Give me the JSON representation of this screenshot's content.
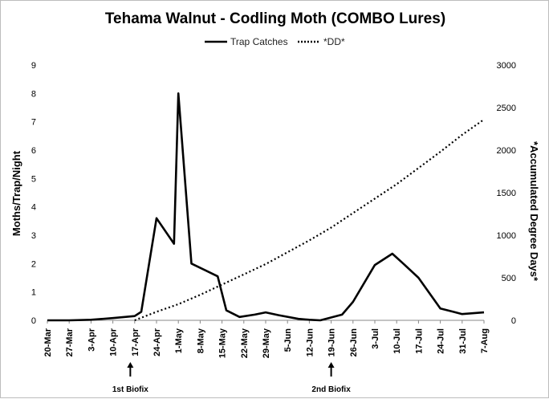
{
  "chart_data": {
    "type": "line",
    "title": "Tehama Walnut - Codling Moth (COMBO Lures)",
    "categories": [
      "20-Mar",
      "27-Mar",
      "3-Apr",
      "10-Apr",
      "17-Apr",
      "24-Apr",
      "1-May",
      "8-May",
      "15-May",
      "22-May",
      "29-May",
      "5-Jun",
      "12-Jun",
      "19-Jun",
      "26-Jun",
      "3-Jul",
      "10-Jul",
      "17-Jul",
      "24-Jul",
      "31-Jul",
      "7-Aug"
    ],
    "ylabel_left": "Moths/Trap/Night",
    "ylabel_right": "*Accumulated Degree Days*",
    "ylim_left": [
      0,
      9
    ],
    "ylim_right": [
      0,
      3000
    ],
    "yticks_left": [
      "0",
      "1",
      "2",
      "3",
      "4",
      "5",
      "6",
      "7",
      "8",
      "9"
    ],
    "yticks_right": [
      "0",
      "500",
      "1000",
      "1500",
      "2000",
      "2500",
      "3000"
    ],
    "legend_position": "top",
    "grid": false,
    "series": [
      {
        "name": "Trap Catches",
        "axis": "left",
        "style": "solid",
        "color": "#000000",
        "x": [
          0,
          1,
          2,
          3,
          4,
          4.3,
          5,
          5.8,
          6,
          6.6,
          7.8,
          8.2,
          8.8,
          9.5,
          10,
          10.6,
          11.5,
          12,
          12.5,
          13.5,
          14,
          15,
          15.8,
          16.3,
          17,
          18,
          18.6,
          19,
          20
        ],
        "y": [
          0,
          0,
          0.02,
          0.08,
          0.15,
          0.3,
          3.6,
          2.7,
          8.0,
          2.0,
          1.55,
          0.35,
          0.12,
          0.2,
          0.28,
          0.18,
          0.05,
          0.02,
          0.0,
          0.2,
          0.65,
          1.95,
          2.35,
          2.0,
          1.5,
          0.42,
          0.3,
          0.22,
          0.28
        ]
      },
      {
        "name": "*DD*",
        "axis": "right",
        "style": "dotted",
        "color": "#000000",
        "x": [
          4,
          5,
          6,
          7,
          8,
          9,
          10,
          11,
          12,
          13,
          14,
          15,
          16,
          17,
          18,
          19,
          20
        ],
        "y": [
          0,
          100,
          190,
          300,
          420,
          540,
          660,
          800,
          940,
          1090,
          1260,
          1430,
          1600,
          1790,
          1980,
          2180,
          2360
        ]
      }
    ],
    "annotations": [
      {
        "text": "1st Biofix",
        "category_index": 3.8
      },
      {
        "text": "2nd Biofix",
        "category_index": 13.0
      }
    ]
  }
}
